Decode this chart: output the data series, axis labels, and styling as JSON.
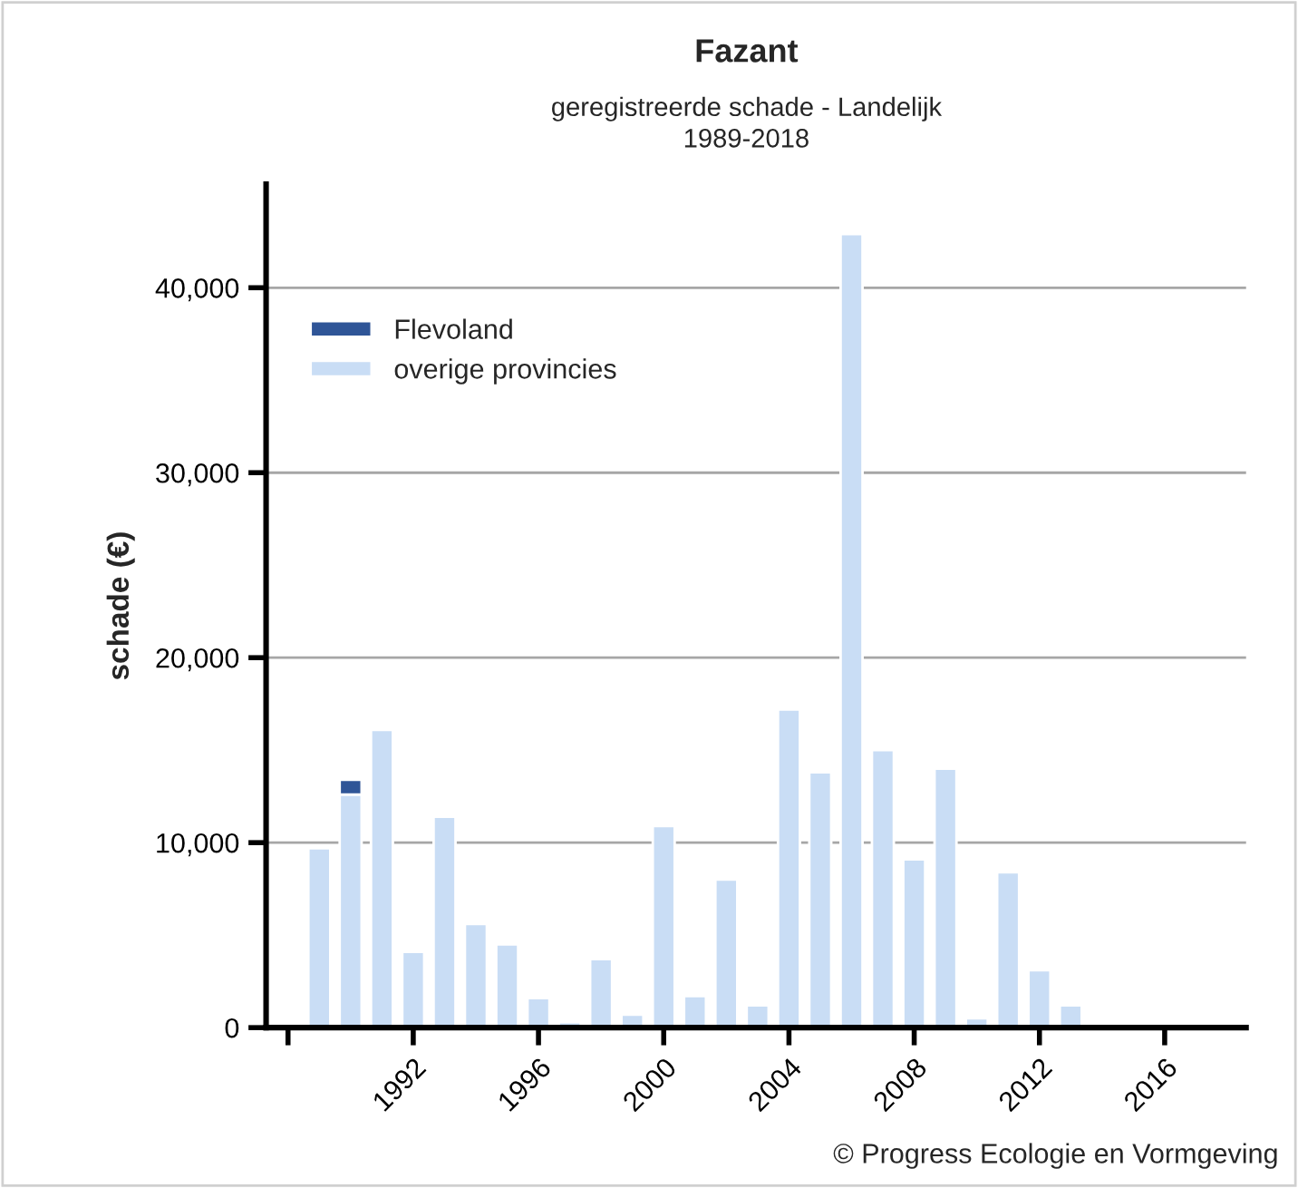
{
  "chart_data": {
    "type": "bar",
    "title": "Fazant",
    "subtitle": "geregistreerde schade - Landelijk\n1989-2018",
    "ylabel": "schade (€)",
    "x": [
      1989,
      1990,
      1991,
      1992,
      1993,
      1994,
      1995,
      1996,
      1997,
      1998,
      1999,
      2000,
      2001,
      2002,
      2003,
      2004,
      2005,
      2006,
      2007,
      2008,
      2009,
      2010,
      2011,
      2012,
      2013
    ],
    "series": [
      {
        "name": "overige provincies",
        "color": "#c9ddf5",
        "values": [
          9700,
          12600,
          16100,
          4100,
          11400,
          5600,
          4500,
          1600,
          300,
          3700,
          700,
          10900,
          1700,
          8000,
          1200,
          17200,
          13800,
          42900,
          15000,
          9100,
          14000,
          500,
          8400,
          3100,
          1200
        ]
      },
      {
        "name": "Flevoland",
        "color": "#2f5597",
        "values": [
          null,
          800,
          null,
          null,
          null,
          null,
          null,
          null,
          null,
          null,
          null,
          null,
          null,
          null,
          null,
          null,
          null,
          null,
          null,
          null,
          null,
          null,
          null,
          null,
          null
        ]
      }
    ],
    "stacked": true,
    "xlim": [
      1987.3,
      2018.6
    ],
    "xticks": [
      {
        "value": 1988,
        "label": null
      },
      1992,
      1996,
      2000,
      2004,
      2008,
      2012,
      2016
    ],
    "ylim": [
      0,
      45600
    ],
    "yticks": [
      {
        "value": 0,
        "label": "0"
      },
      {
        "value": 10000,
        "label": "10,000"
      },
      {
        "value": 20000,
        "label": "20,000"
      },
      {
        "value": 30000,
        "label": "30,000"
      },
      {
        "value": 40000,
        "label": "40,000"
      }
    ],
    "grid": "y",
    "legend": "top left",
    "annotations": [
      "© Progress Ecologie en Vormgeving"
    ]
  }
}
